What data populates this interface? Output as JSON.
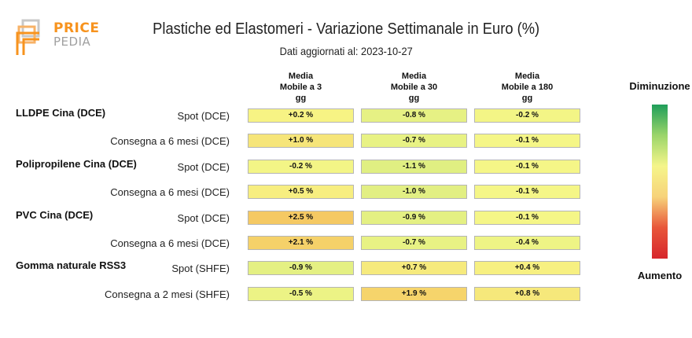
{
  "logo": {
    "line1": "PRICE",
    "line2": "PEDIA"
  },
  "chart_data": {
    "type": "heatmap",
    "title": "Plastiche ed Elastomeri - Variazione Settimanale in Euro (%)",
    "subtitle": "Dati aggiornati al: 2023-10-27",
    "columns": [
      [
        "Media",
        "Mobile a 3",
        "gg"
      ],
      [
        "Media",
        "Mobile a 30",
        "gg"
      ],
      [
        "Media",
        "Mobile a 180",
        "gg"
      ]
    ],
    "groups": [
      {
        "name": "LLDPE Cina (DCE)",
        "rows": [
          {
            "label": "Spot (DCE)",
            "values": [
              0.2,
              -0.8,
              -0.2
            ]
          },
          {
            "label": "Consegna a 6 mesi (DCE)",
            "values": [
              1.0,
              -0.7,
              -0.1
            ]
          }
        ]
      },
      {
        "name": "Polipropilene Cina (DCE)",
        "rows": [
          {
            "label": "Spot (DCE)",
            "values": [
              -0.2,
              -1.1,
              -0.1
            ]
          },
          {
            "label": "Consegna a 6 mesi (DCE)",
            "values": [
              0.5,
              -1.0,
              -0.1
            ]
          }
        ]
      },
      {
        "name": "PVC Cina (DCE)",
        "rows": [
          {
            "label": "Spot (DCE)",
            "values": [
              2.5,
              -0.9,
              -0.1
            ]
          },
          {
            "label": "Consegna a 6 mesi (DCE)",
            "values": [
              2.1,
              -0.7,
              -0.4
            ]
          }
        ]
      },
      {
        "name": "Gomma naturale RSS3",
        "rows": [
          {
            "label": "Spot (SHFE)",
            "values": [
              -0.9,
              0.7,
              0.4
            ]
          },
          {
            "label": "Consegna a 2 mesi (SHFE)",
            "values": [
              -0.5,
              1.9,
              0.8
            ]
          }
        ]
      }
    ],
    "legend": {
      "top": "Diminuzione",
      "bottom": "Aumento",
      "colors": [
        "#1f9e5a",
        "#9bd56a",
        "#f5f58a",
        "#f7d27a",
        "#e8563a",
        "#d7262c"
      ]
    }
  }
}
